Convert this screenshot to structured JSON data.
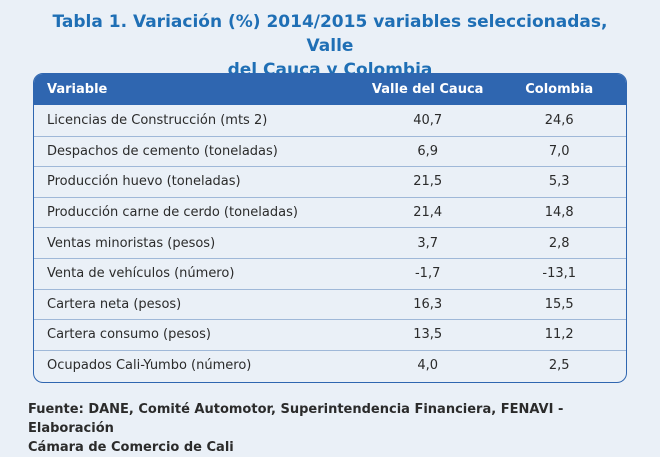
{
  "title": {
    "line1": "Tabla 1. Variación (%) 2014/2015 variables seleccionadas, Valle",
    "line2": "del Cauca y Colombia"
  },
  "table": {
    "headers": [
      "Variable",
      "Valle del Cauca",
      "Colombia"
    ],
    "rows": [
      {
        "variable": "Licencias de Construcción (mts 2)",
        "valle": "40,7",
        "colombia": "24,6"
      },
      {
        "variable": "Despachos de cemento (toneladas)",
        "valle": "6,9",
        "colombia": "7,0"
      },
      {
        "variable": "Producción huevo (toneladas)",
        "valle": "21,5",
        "colombia": "5,3"
      },
      {
        "variable": "Producción carne de cerdo (toneladas)",
        "valle": "21,4",
        "colombia": "14,8"
      },
      {
        "variable": "Ventas minoristas (pesos)",
        "valle": "3,7",
        "colombia": "2,8"
      },
      {
        "variable": "Venta de vehículos (número)",
        "valle": "-1,7",
        "colombia": "-13,1"
      },
      {
        "variable": "Cartera neta (pesos)",
        "valle": "16,3",
        "colombia": "15,5"
      },
      {
        "variable": "Cartera consumo (pesos)",
        "valle": "13,5",
        "colombia": "11,2"
      },
      {
        "variable": "Ocupados Cali-Yumbo (número)",
        "valle": "4,0",
        "colombia": "2,5"
      }
    ]
  },
  "source": {
    "line1": "Fuente: DANE, Comité Automotor, Superintendencia Financiera, FENAVI - Elaboración",
    "line2": "Cámara de Comercio de Cali"
  }
}
